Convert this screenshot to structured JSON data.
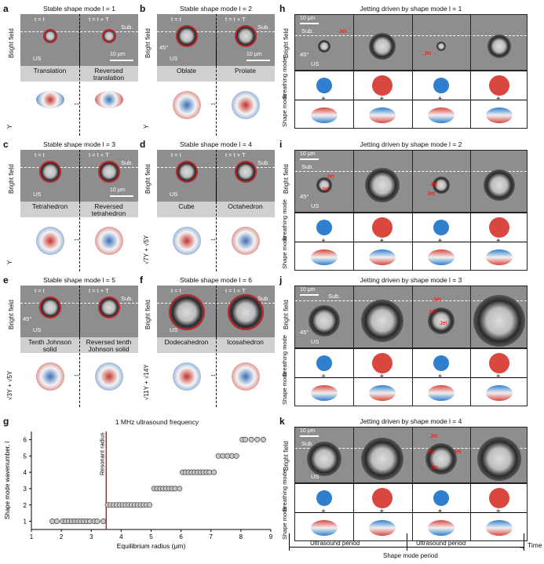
{
  "panels": {
    "a": {
      "label": "a",
      "title": "Stable shape mode l = 1",
      "ylabel": "Bright field",
      "t1": "t = t",
      "t2": "t = t + T",
      "sub": "Sub.",
      "scale": "10 μm",
      "us": "US",
      "left": "Translation",
      "right": "Reversed translation",
      "harm": "Y"
    },
    "b": {
      "label": "b",
      "title": "Stable shape mode l = 2",
      "ylabel": "Bright field",
      "t1": "t = t",
      "t2": "t = t + T",
      "sub": "Sub.",
      "scale": "10 μm",
      "angle": "45°",
      "us": "US",
      "left": "Oblate",
      "right": "Prolate",
      "harm": "Y"
    },
    "c": {
      "label": "c",
      "title": "Stable shape mode l = 3",
      "ylabel": "Bright field",
      "t1": "t = t",
      "t2": "t = t + T",
      "sub": "Sub.",
      "scale": "10 μm",
      "us": "US",
      "left": "Tetrahedron",
      "right": "Reversed tetrahedron",
      "harm": "Y"
    },
    "d": {
      "label": "d",
      "title": "Stable shape mode l = 4",
      "ylabel": "Bright field",
      "t1": "t = t",
      "t2": "t = t + T",
      "sub": "Sub.",
      "us": "US",
      "left": "Cube",
      "right": "Octahedron",
      "harm": "√7Y + √5Y"
    },
    "e": {
      "label": "e",
      "title": "Stable shape mode l = 5",
      "ylabel": "Bright field",
      "t1": "t = t",
      "t2": "t = t + T",
      "sub": "Sub.",
      "angle": "45°",
      "us": "US",
      "left": "Tenth Johnson solid",
      "right": "Reversed tenth Johnson solid",
      "harm": "√3Y + √5Y"
    },
    "f": {
      "label": "f",
      "title": "Stable shape mode l = 6",
      "ylabel": "Bright field",
      "t1": "t = t",
      "t2": "t = t + T",
      "sub": "Sub.",
      "us": "US",
      "left": "Dodecahedron",
      "right": "Icosahedron",
      "harm": "√11Y + √14Y"
    },
    "h": {
      "label": "h",
      "title": "Jetting driven by shape mode l = 1",
      "scale": "10 μm",
      "sub": "Sub.",
      "jet": "Jet",
      "angle": "45°",
      "us": "US",
      "ylabel": "Bright field",
      "breathing": "Breathing mode",
      "shape": "Shape mode"
    },
    "i": {
      "label": "i",
      "title": "Jetting driven by shape mode l = 2",
      "scale": "10 μm",
      "sub": "Sub.",
      "jet": "Jet",
      "angle": "45°",
      "us": "US",
      "ylabel": "Bright field",
      "breathing": "Breathing mode",
      "shape": "Shape mode"
    },
    "j": {
      "label": "j",
      "title": "Jetting driven by shape mode l = 3",
      "scale": "10 μm",
      "sub": "Sub.",
      "jet": "Jet",
      "angle": "45°",
      "us": "US",
      "ylabel": "Bright field",
      "breathing": "Breathing mode",
      "shape": "Shape mode"
    },
    "k": {
      "label": "k",
      "title": "Jetting driven by shape mode l = 4",
      "scale": "10 μm",
      "sub": "Sub.",
      "jet": "Jet",
      "us": "US",
      "ylabel": "Bright field",
      "breathing": "Breathing mode",
      "shape": "Shape mode"
    }
  },
  "timeline": {
    "period1": "Ultrasound period",
    "period2": "Ultrasound period",
    "time": "Time",
    "shape_period": "Shape mode period"
  },
  "chart_data": {
    "label": "g",
    "type": "scatter",
    "title": "1 MHz ultrasound frequency",
    "xlabel": "Equilibrium radius (μm)",
    "ylabel": "Shape mode wavenumber, l",
    "xlim": [
      1,
      9
    ],
    "ylim": [
      0.5,
      6.5
    ],
    "xticks": [
      "1",
      "2",
      "3",
      "4",
      "5",
      "6",
      "7",
      "8",
      "9"
    ],
    "yticks": [
      "1",
      "2",
      "3",
      "4",
      "5",
      "6"
    ],
    "resonant_radius": 3.5,
    "resonant_label": "Resonant radius",
    "series": [
      {
        "name": "l=1",
        "x": [
          1.7,
          1.85,
          2.05,
          2.15,
          2.25,
          2.35,
          2.45,
          2.55,
          2.65,
          2.75,
          2.85,
          2.95,
          3.1,
          3.2,
          3.4
        ],
        "y": 1
      },
      {
        "name": "l=2",
        "x": [
          3.55,
          3.65,
          3.75,
          3.85,
          3.95,
          4.05,
          4.15,
          4.25,
          4.35,
          4.45,
          4.55,
          4.65,
          4.75,
          4.85,
          4.95
        ],
        "y": 2
      },
      {
        "name": "l=3",
        "x": [
          5.1,
          5.2,
          5.3,
          5.4,
          5.5,
          5.6,
          5.7,
          5.8,
          5.95
        ],
        "y": 3
      },
      {
        "name": "l=4",
        "x": [
          6.05,
          6.15,
          6.25,
          6.35,
          6.45,
          6.55,
          6.65,
          6.75,
          6.85,
          6.95,
          7.1
        ],
        "y": 4
      },
      {
        "name": "l=5",
        "x": [
          7.25,
          7.4,
          7.55,
          7.7,
          7.85
        ],
        "y": 5
      },
      {
        "name": "l=6",
        "x": [
          8.05,
          8.15,
          8.35,
          8.55,
          8.75
        ],
        "y": 6
      }
    ]
  }
}
